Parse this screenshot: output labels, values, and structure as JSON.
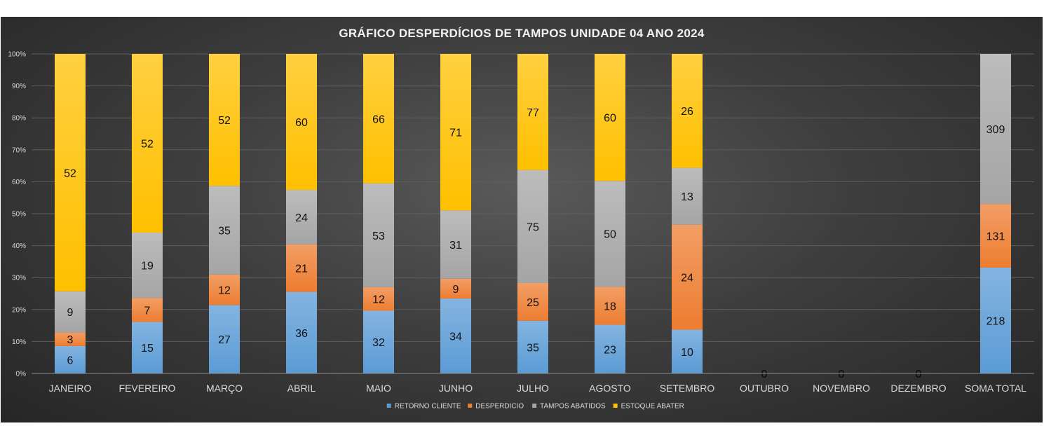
{
  "chart_data": {
    "type": "bar",
    "stacked": "percent",
    "title": "GRÁFICO DESPERDÍCIOS  DE TAMPOS  UNIDADE 04 ANO 2024",
    "categories": [
      "JANEIRO",
      "FEVEREIRO",
      "MARÇO",
      "ABRIL",
      "MAIO",
      "JUNHO",
      "JULHO",
      "AGOSTO",
      "SETEMBRO",
      "OUTUBRO",
      "NOVEMBRO",
      "DEZEMBRO",
      "SOMA TOTAL"
    ],
    "yticks": [
      "0%",
      "10%",
      "20%",
      "30%",
      "40%",
      "50%",
      "60%",
      "70%",
      "80%",
      "90%",
      "100%"
    ],
    "ylim": [
      0,
      100
    ],
    "grid": true,
    "legend_position": "bottom",
    "series": [
      {
        "name": "RETORNO CLIENTE",
        "color": "#5b9bd5",
        "values": [
          6,
          15,
          27,
          36,
          32,
          34,
          35,
          23,
          10,
          0,
          0,
          0,
          218
        ]
      },
      {
        "name": "DESPERDICIO",
        "color": "#ed7d31",
        "values": [
          3,
          7,
          12,
          21,
          12,
          9,
          25,
          18,
          24,
          0,
          0,
          0,
          131
        ]
      },
      {
        "name": "TAMPOS ABATIDOS",
        "color": "#a5a5a5",
        "values": [
          9,
          19,
          35,
          24,
          53,
          31,
          75,
          50,
          13,
          0,
          0,
          0,
          309
        ]
      },
      {
        "name": "ESTOQUE ABATER",
        "color": "#ffc000",
        "values": [
          52,
          52,
          52,
          60,
          66,
          71,
          77,
          60,
          26,
          0,
          0,
          0,
          null
        ]
      }
    ]
  }
}
